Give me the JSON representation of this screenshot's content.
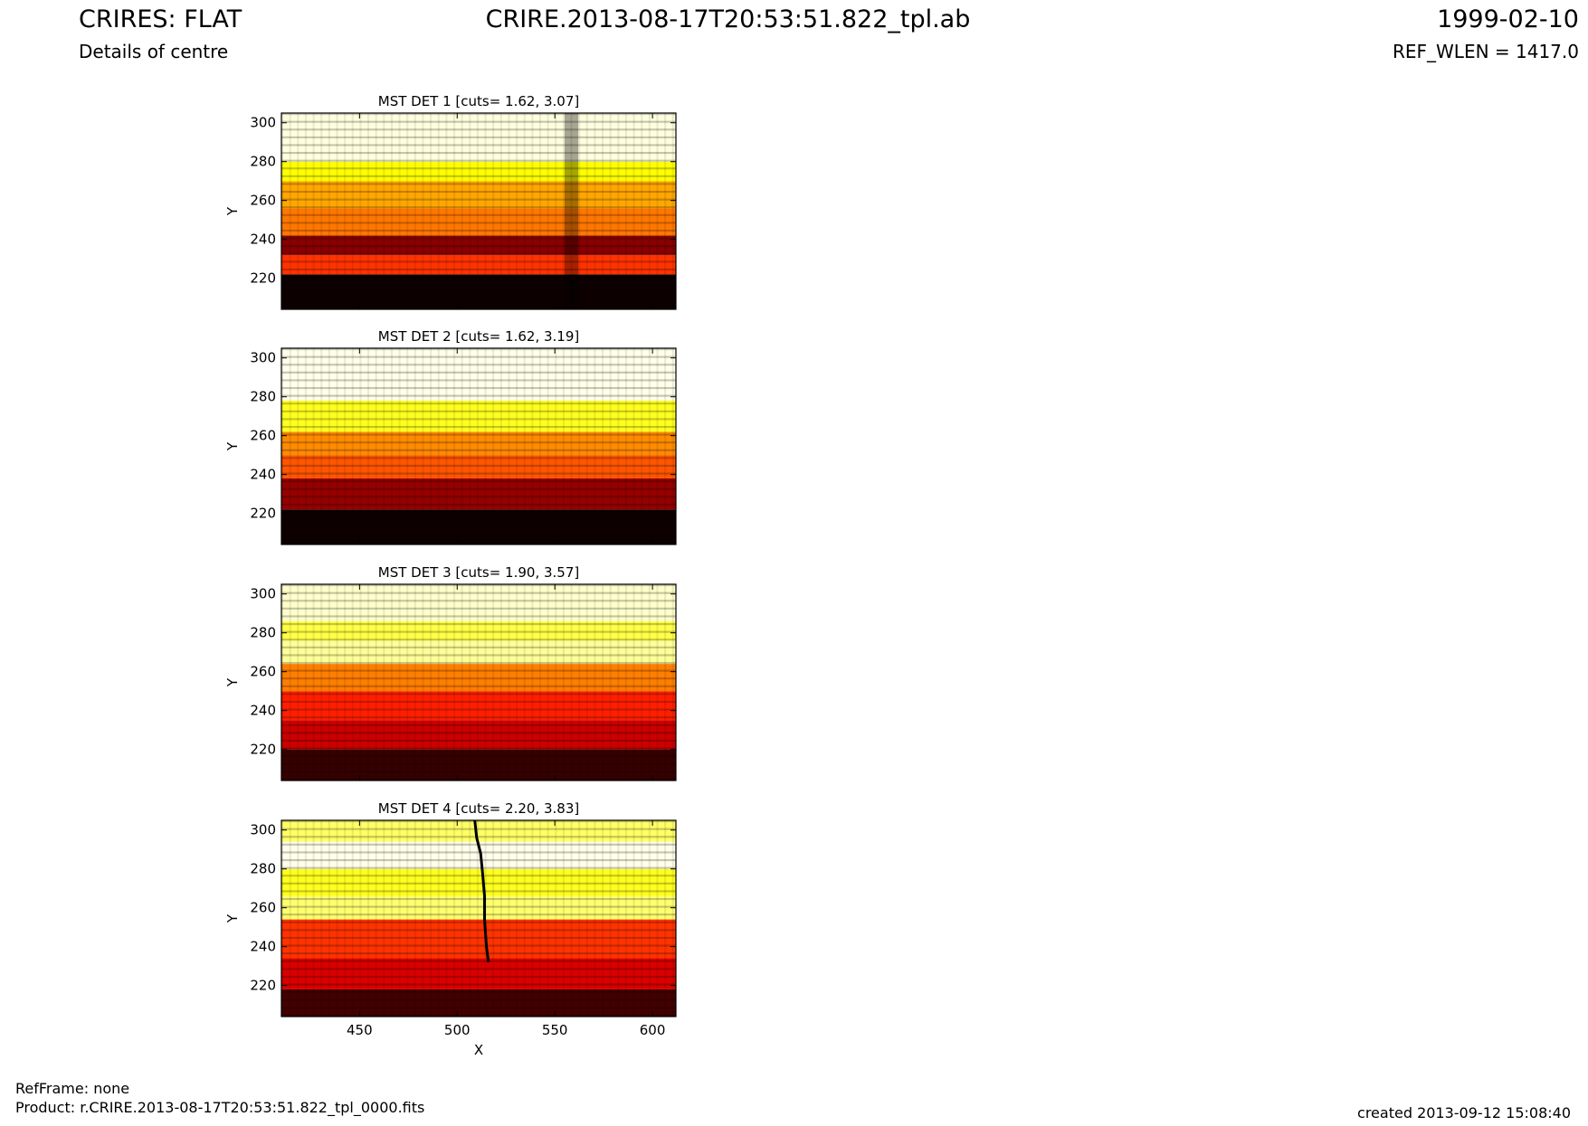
{
  "header": {
    "title_left": "CRIRES: FLAT",
    "subtitle_left": "Details of centre",
    "title_center": "CRIRE.2013-08-17T20:53:51.822_tpl.ab",
    "date_right": "1999-02-10",
    "refwlen_right": "REF_WLEN = 1417.0"
  },
  "footer": {
    "refframe": "RefFrame: none",
    "product": "Product: r.CRIRE.2013-08-17T20:53:51.822_tpl_0000.fits",
    "created": "created 2013-09-12 15:08:40"
  },
  "chart_data": [
    {
      "type": "heatmap",
      "title": "MST DET 1 [cuts= 1.62, 3.07]",
      "ylabel": "Y",
      "xlim": [
        410,
        612
      ],
      "ylim": [
        204,
        305
      ],
      "yticks": [
        220,
        240,
        260,
        280,
        300
      ],
      "colormap": "hot",
      "bands": [
        [
          204,
          222,
          0.02
        ],
        [
          222,
          232,
          0.45
        ],
        [
          232,
          242,
          0.2
        ],
        [
          242,
          256,
          0.55
        ],
        [
          256,
          270,
          0.62
        ],
        [
          270,
          280,
          0.75
        ],
        [
          280,
          305,
          0.97
        ]
      ],
      "columns": [
        [
          555,
          562,
          -0.35
        ]
      ]
    },
    {
      "type": "heatmap",
      "title": "MST DET 2 [cuts= 1.62, 3.19]",
      "ylabel": "Y",
      "xlim": [
        410,
        612
      ],
      "ylim": [
        204,
        305
      ],
      "yticks": [
        220,
        240,
        260,
        280,
        300
      ],
      "colormap": "hot",
      "bands": [
        [
          204,
          222,
          0.02
        ],
        [
          222,
          238,
          0.22
        ],
        [
          238,
          250,
          0.5
        ],
        [
          250,
          262,
          0.58
        ],
        [
          262,
          278,
          0.78
        ],
        [
          278,
          305,
          0.98
        ]
      ],
      "columns": []
    },
    {
      "type": "heatmap",
      "title": "MST DET 3 [cuts= 1.90, 3.57]",
      "ylabel": "Y",
      "xlim": [
        410,
        612
      ],
      "ylim": [
        204,
        305
      ],
      "yticks": [
        220,
        240,
        260,
        280,
        300
      ],
      "colormap": "hot",
      "bands": [
        [
          204,
          220,
          0.08
        ],
        [
          220,
          235,
          0.3
        ],
        [
          235,
          250,
          0.42
        ],
        [
          250,
          264,
          0.56
        ],
        [
          264,
          276,
          0.9
        ],
        [
          276,
          286,
          0.82
        ],
        [
          286,
          305,
          0.95
        ]
      ],
      "columns": []
    },
    {
      "type": "heatmap",
      "title": "MST DET 4 [cuts= 2.20, 3.83]",
      "ylabel": "Y",
      "xlabel": "X",
      "xlim": [
        410,
        612
      ],
      "ylim": [
        204,
        305
      ],
      "xticks": [
        450,
        500,
        550,
        600
      ],
      "yticks": [
        220,
        240,
        260,
        280,
        300
      ],
      "colormap": "hot",
      "bands": [
        [
          204,
          218,
          0.1
        ],
        [
          218,
          234,
          0.32
        ],
        [
          234,
          254,
          0.45
        ],
        [
          254,
          266,
          0.86
        ],
        [
          266,
          280,
          0.78
        ],
        [
          280,
          294,
          0.98
        ],
        [
          294,
          305,
          0.85
        ]
      ],
      "columns": [],
      "trace": [
        [
          509,
          305
        ],
        [
          510,
          296
        ],
        [
          512,
          288
        ],
        [
          513,
          278
        ],
        [
          514,
          266
        ],
        [
          514,
          254
        ],
        [
          515,
          240
        ],
        [
          516,
          232
        ]
      ]
    }
  ]
}
